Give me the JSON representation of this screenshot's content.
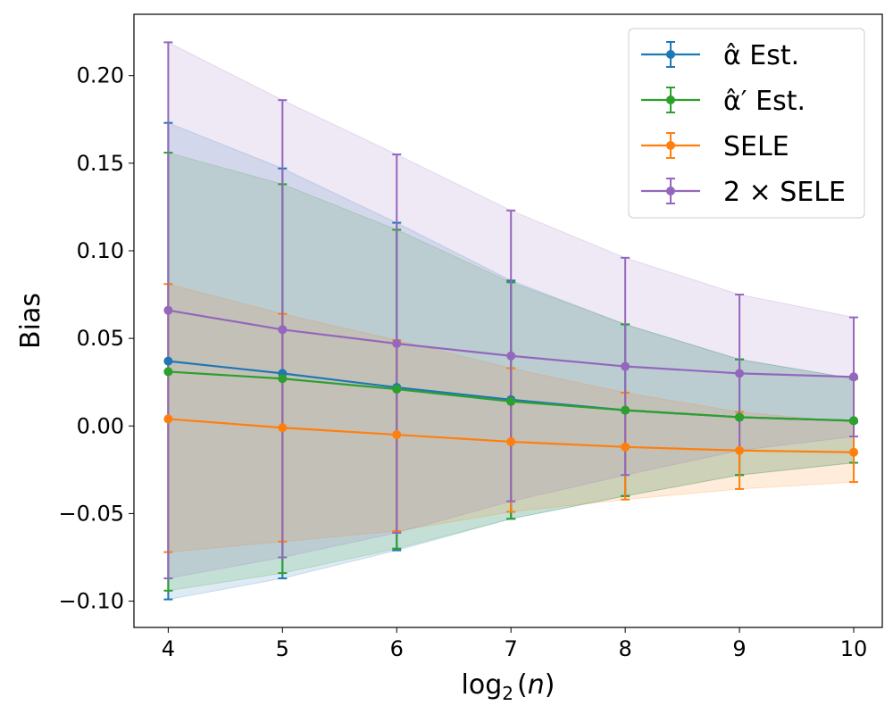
{
  "chart_data": {
    "type": "line",
    "xlabel": "log₂(n)",
    "ylabel": "Bias",
    "x": [
      4,
      5,
      6,
      7,
      8,
      9,
      10
    ],
    "xlim": [
      3.7,
      10.25
    ],
    "ylim": [
      -0.115,
      0.235
    ],
    "xticks": [
      4,
      5,
      6,
      7,
      8,
      9,
      10
    ],
    "yticks": [
      -0.1,
      -0.05,
      0.0,
      0.05,
      0.1,
      0.15,
      0.2
    ],
    "ytick_labels": [
      "−0.10",
      "−0.05",
      "0.00",
      "0.05",
      "0.10",
      "0.15",
      "0.20"
    ],
    "grid": false,
    "legend_position": "top-right",
    "series": [
      {
        "name": "α̂ Est.",
        "color": "#1f77b4",
        "values": [
          0.037,
          0.03,
          0.022,
          0.015,
          0.009,
          0.005,
          0.003
        ],
        "lower": [
          -0.099,
          -0.087,
          -0.071,
          -0.053,
          -0.04,
          -0.028,
          -0.021
        ],
        "upper": [
          0.173,
          0.147,
          0.116,
          0.083,
          0.058,
          0.038,
          0.027
        ]
      },
      {
        "name": "α̂′ Est.",
        "color": "#2ca02c",
        "values": [
          0.031,
          0.027,
          0.021,
          0.014,
          0.009,
          0.005,
          0.003
        ],
        "lower": [
          -0.094,
          -0.084,
          -0.07,
          -0.053,
          -0.04,
          -0.028,
          -0.021
        ],
        "upper": [
          0.156,
          0.138,
          0.112,
          0.082,
          0.058,
          0.038,
          0.027
        ]
      },
      {
        "name": "SELE",
        "color": "#ff7f0e",
        "values": [
          0.004,
          -0.001,
          -0.005,
          -0.009,
          -0.012,
          -0.014,
          -0.015
        ],
        "lower": [
          -0.072,
          -0.066,
          -0.06,
          -0.049,
          -0.042,
          -0.036,
          -0.032
        ],
        "upper": [
          0.081,
          0.064,
          0.049,
          0.033,
          0.019,
          0.008,
          0.002
        ]
      },
      {
        "name": "2 × SELE",
        "color": "#9467bd",
        "values": [
          0.066,
          0.055,
          0.047,
          0.04,
          0.034,
          0.03,
          0.028
        ],
        "lower": [
          -0.087,
          -0.075,
          -0.061,
          -0.043,
          -0.028,
          -0.014,
          -0.006
        ],
        "upper": [
          0.219,
          0.186,
          0.155,
          0.123,
          0.096,
          0.075,
          0.062
        ]
      }
    ]
  }
}
